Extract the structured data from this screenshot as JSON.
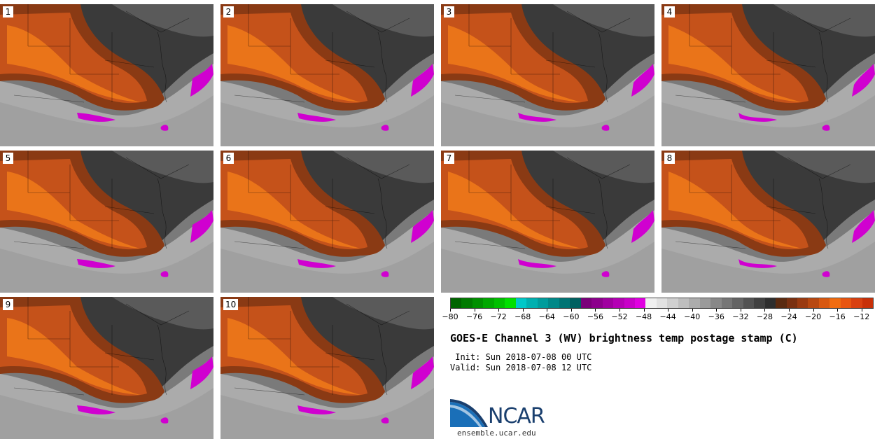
{
  "panels": [
    {
      "label": "1"
    },
    {
      "label": "2"
    },
    {
      "label": "3"
    },
    {
      "label": "4"
    },
    {
      "label": "5"
    },
    {
      "label": "6"
    },
    {
      "label": "7"
    },
    {
      "label": "8"
    },
    {
      "label": "9"
    },
    {
      "label": "10"
    }
  ],
  "colorbar": {
    "colors": [
      "#006400",
      "#007a00",
      "#009000",
      "#00a800",
      "#00c000",
      "#00e000",
      "#00c8c8",
      "#00b0b0",
      "#009c9c",
      "#008888",
      "#007474",
      "#006060",
      "#7a007a",
      "#8c008c",
      "#a000a0",
      "#b400b4",
      "#c800c8",
      "#e000e0",
      "#f0f0f0",
      "#e2e2e2",
      "#d0d0d0",
      "#bebebe",
      "#acacac",
      "#9a9a9a",
      "#888888",
      "#767676",
      "#646464",
      "#525252",
      "#404040",
      "#2e2e2e",
      "#5a2a10",
      "#7a3010",
      "#9a3a10",
      "#b84810",
      "#d85810",
      "#f06c10",
      "#e85510",
      "#d84010",
      "#c83008"
    ],
    "ticks": [
      "-80",
      "-76",
      "-72",
      "-68",
      "-64",
      "-60",
      "-56",
      "-52",
      "-48",
      "-44",
      "-40",
      "-36",
      "-32",
      "-28",
      "-24",
      "-20",
      "-16",
      "-12"
    ],
    "range": [
      -80,
      -10
    ]
  },
  "title": "GOES-E Channel 3 (WV) brightness temp postage stamp (C)",
  "init": " Init: Sun 2018-07-08 00 UTC",
  "valid": "Valid: Sun 2018-07-08 12 UTC",
  "logo": {
    "text": "NCAR",
    "url": "ensemble.ucar.edu"
  },
  "colors": {
    "dry_outer": "#8a3a14",
    "dry_mid": "#c5521a",
    "dry_core": "#f07a1a",
    "dark": "#3a3a3a",
    "mid_gray": "#7a7a7a",
    "light_gray": "#b8b8b8",
    "cold_tops": "#d000d0",
    "logo_blue": "#1a3f6e"
  }
}
